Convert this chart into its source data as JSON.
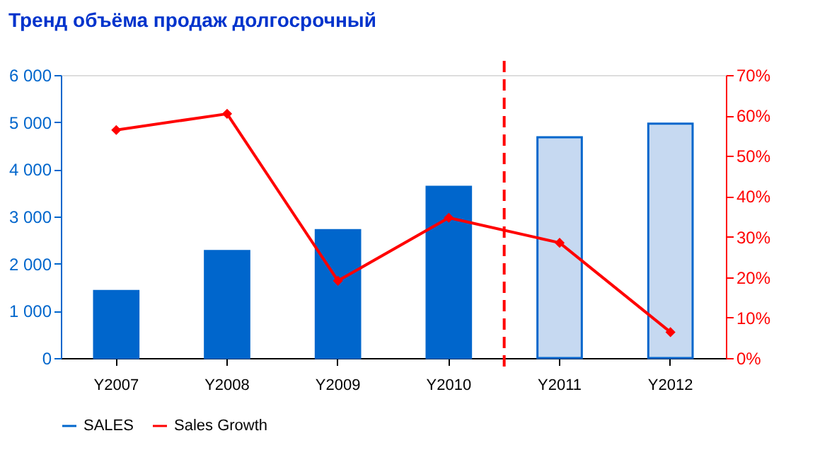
{
  "chart_data": {
    "type": "bar",
    "title": "Тренд объёма продаж долгосрочный",
    "categories": [
      "Y2007",
      "Y2008",
      "Y2009",
      "Y2010",
      "Y2011",
      "Y2012"
    ],
    "series": [
      {
        "name": "SALES",
        "color": "#0066cc",
        "colors": [
          "#0066cc",
          "#0066cc",
          "#0066cc",
          "#0066cc",
          "#c6d9f1",
          "#c6d9f1"
        ],
        "values": [
          1420,
          2270,
          2710,
          3630,
          4680,
          4970
        ]
      },
      {
        "name": "Sales Growth",
        "type": "line",
        "axis": "y2",
        "color": "#ff0000",
        "marker": "diamond",
        "values": [
          56.4,
          60.4,
          19.1,
          34.7,
          28.5,
          6.4
        ]
      }
    ],
    "ylim": [
      0,
      6000
    ],
    "yticks": [
      0,
      {
        "value": 1000,
        "label": "1 000"
      },
      {
        "value": 2000,
        "label": "2 000"
      },
      {
        "value": 3000,
        "label": "3 000"
      },
      {
        "value": 4000,
        "label": "4 000"
      },
      {
        "value": 5000,
        "label": "5 000"
      },
      {
        "value": 6000,
        "label": "6 000"
      }
    ],
    "y2lim": [
      0,
      70
    ],
    "y2ticks": [
      {
        "value": 0,
        "label": "0%"
      },
      {
        "value": 10,
        "label": "10%"
      },
      {
        "value": 20,
        "label": "20%"
      },
      {
        "value": 30,
        "label": "30%"
      },
      {
        "value": 40,
        "label": "40%"
      },
      {
        "value": 50,
        "label": "50%"
      },
      {
        "value": 60,
        "label": "60%"
      },
      {
        "value": 70,
        "label": "70%"
      }
    ],
    "ref_lines": [
      {
        "axis": "x",
        "value": "Y2011",
        "color": "#ff0000",
        "line_style": "dashed"
      }
    ],
    "grid": false,
    "legend": "bottom"
  }
}
